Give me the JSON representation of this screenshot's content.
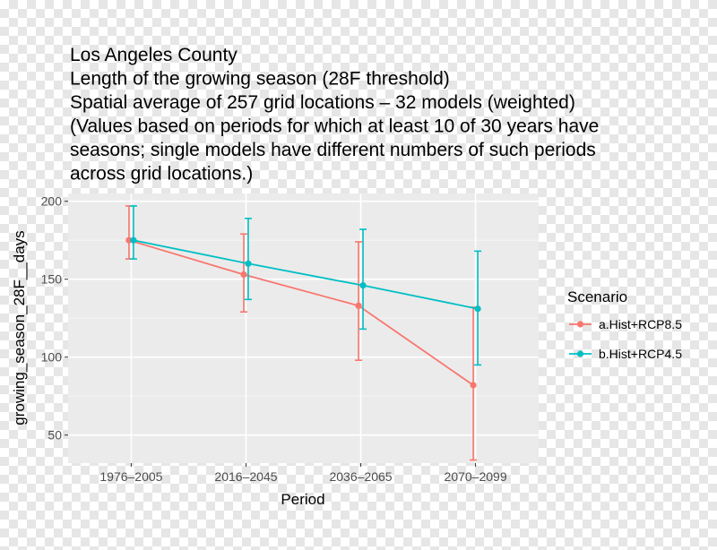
{
  "chart_data": {
    "type": "line",
    "title_lines": [
      "Los Angeles County",
      "Length of the growing season (28F threshold)",
      "Spatial average of 257 grid locations – 32 models (weighted)",
      "(Values based on periods for which at least 10 of 30 years have",
      "seasons; single models have different numbers of such periods",
      "across grid locations.)"
    ],
    "xlabel": "Period",
    "ylabel": "growing_season_28F__days",
    "categories": [
      "1976–2005",
      "2016–2045",
      "2036–2065",
      "2070–2099"
    ],
    "ylim": [
      32,
      205
    ],
    "yticks": [
      50,
      100,
      150,
      200
    ],
    "grid": true,
    "legend": {
      "title": "Scenario",
      "position": "right"
    },
    "series": [
      {
        "name": "a.Hist+RCP8.5",
        "color": "#F8766D",
        "values": [
          175,
          153,
          133,
          82
        ],
        "lower": [
          163,
          129,
          98,
          34
        ],
        "upper": [
          197,
          179,
          174,
          132
        ]
      },
      {
        "name": "b.Hist+RCP4.5",
        "color": "#00BFC4",
        "values": [
          175,
          160,
          146,
          131
        ],
        "lower": [
          163,
          137,
          118,
          95
        ],
        "upper": [
          197,
          189,
          182,
          168
        ]
      }
    ]
  }
}
